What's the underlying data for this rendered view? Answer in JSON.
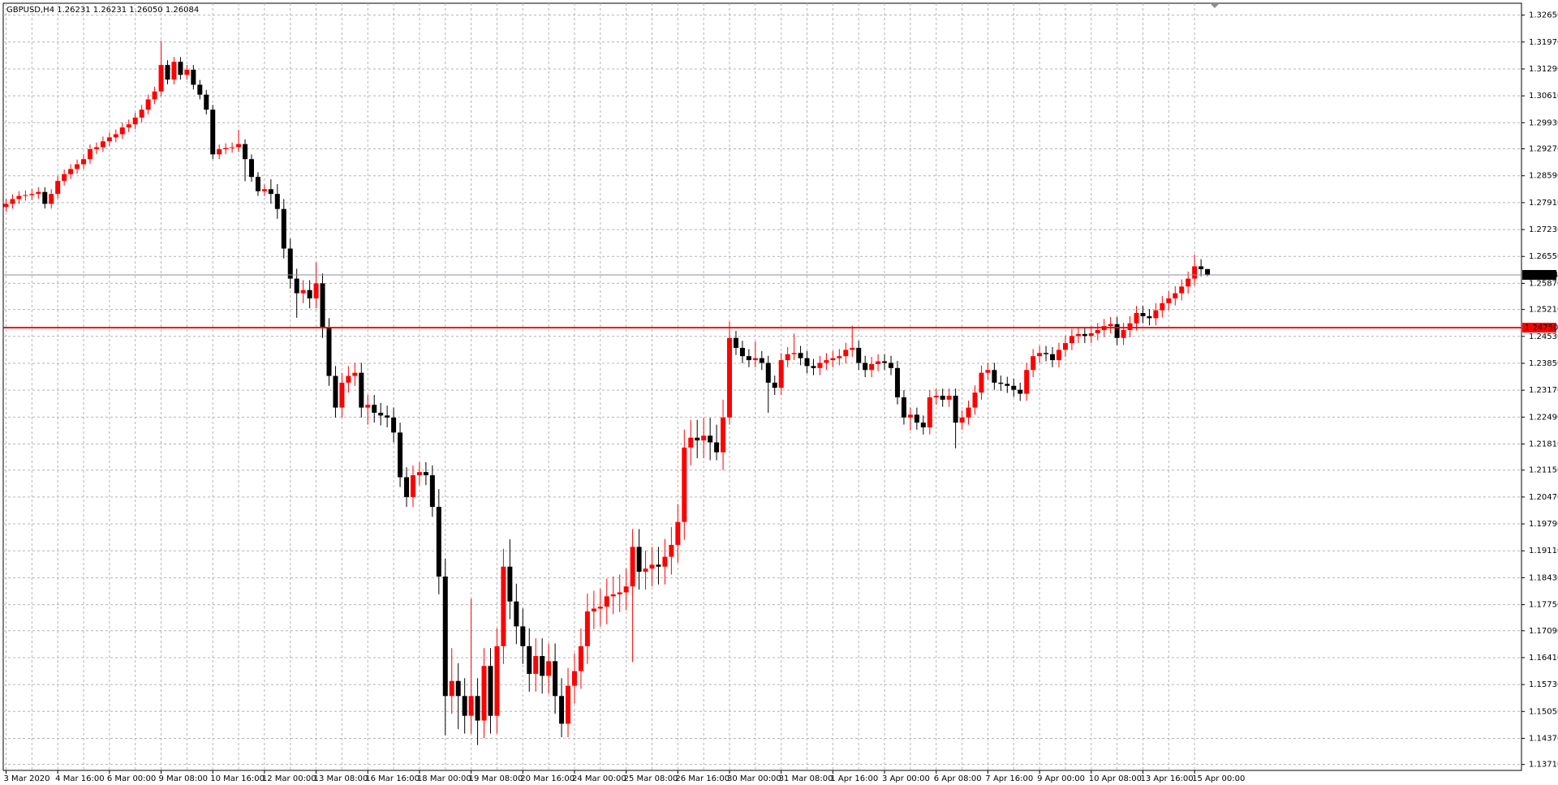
{
  "chart_data": {
    "type": "candlestick",
    "title": "GBPUSD,H4  1.26231 1.26231 1.26050 1.26084",
    "up_color": "#ff0000",
    "down_color": "#000000",
    "grid": true,
    "grid_color": "#b4b4b4",
    "ylim": [
      1.1356,
      1.3295
    ],
    "yticks": [
      {
        "value": 1.3265,
        "label": "1.32650"
      },
      {
        "value": 1.3197,
        "label": "1.31970"
      },
      {
        "value": 1.3129,
        "label": "1.31290"
      },
      {
        "value": 1.3061,
        "label": "1.30610"
      },
      {
        "value": 1.2993,
        "label": "1.29930"
      },
      {
        "value": 1.2927,
        "label": "1.29270"
      },
      {
        "value": 1.2859,
        "label": "1.28590"
      },
      {
        "value": 1.2791,
        "label": "1.27910"
      },
      {
        "value": 1.2723,
        "label": "1.27230"
      },
      {
        "value": 1.2655,
        "label": "1.26550"
      },
      {
        "value": 1.2587,
        "label": "1.25870"
      },
      {
        "value": 1.2521,
        "label": "1.25210"
      },
      {
        "value": 1.2453,
        "label": "1.24530"
      },
      {
        "value": 1.2385,
        "label": "1.23850"
      },
      {
        "value": 1.2317,
        "label": "1.23170"
      },
      {
        "value": 1.2249,
        "label": "1.22490"
      },
      {
        "value": 1.2181,
        "label": "1.21810"
      },
      {
        "value": 1.2115,
        "label": "1.21150"
      },
      {
        "value": 1.2047,
        "label": "1.20470"
      },
      {
        "value": 1.1979,
        "label": "1.19790"
      },
      {
        "value": 1.1911,
        "label": "1.19110"
      },
      {
        "value": 1.1843,
        "label": "1.18430"
      },
      {
        "value": 1.1775,
        "label": "1.17750"
      },
      {
        "value": 1.1709,
        "label": "1.17090"
      },
      {
        "value": 1.1641,
        "label": "1.16410"
      },
      {
        "value": 1.1573,
        "label": "1.15730"
      },
      {
        "value": 1.1505,
        "label": "1.15050"
      },
      {
        "value": 1.1437,
        "label": "1.14370"
      },
      {
        "value": 1.1371,
        "label": "1.13710"
      }
    ],
    "price_lines": [
      {
        "price": 1.26084,
        "color": "#8c8c9c",
        "label_color": "#000000"
      },
      {
        "price": {
          "value": 1.2475,
          "label": "1.24750"
        },
        "color": "#ff0000",
        "label_color": "#ff0000"
      }
    ],
    "categories": [
      "3 Mar 2020",
      null,
      null,
      null,
      null,
      null,
      null,
      null,
      "4 Mar 16:00",
      null,
      null,
      null,
      null,
      null,
      null,
      null,
      "6 Mar 00:00",
      null,
      null,
      null,
      null,
      null,
      null,
      null,
      "9 Mar 08:00",
      null,
      null,
      null,
      null,
      null,
      null,
      null,
      "10 Mar 16:00",
      null,
      null,
      null,
      null,
      null,
      null,
      null,
      "12 Mar 00:00",
      null,
      null,
      null,
      null,
      null,
      null,
      null,
      "13 Mar 08:00",
      null,
      null,
      null,
      null,
      null,
      null,
      null,
      "16 Mar 16:00",
      null,
      null,
      null,
      null,
      null,
      null,
      null,
      "18 Mar 00:00",
      null,
      null,
      null,
      null,
      null,
      null,
      null,
      "19 Mar 08:00",
      null,
      null,
      null,
      null,
      null,
      null,
      null,
      "20 Mar 16:00",
      null,
      null,
      null,
      null,
      null,
      null,
      null,
      "24 Mar 00:00",
      null,
      null,
      null,
      null,
      null,
      null,
      null,
      "25 Mar 08:00",
      null,
      null,
      null,
      null,
      null,
      null,
      null,
      "26 Mar 16:00",
      null,
      null,
      null,
      null,
      null,
      null,
      null,
      "30 Mar 00:00",
      null,
      null,
      null,
      null,
      null,
      null,
      null,
      "31 Mar 08:00",
      null,
      null,
      null,
      null,
      null,
      null,
      null,
      "1 Apr 16:00",
      null,
      null,
      null,
      null,
      null,
      null,
      null,
      "3 Apr 00:00",
      null,
      null,
      null,
      null,
      null,
      null,
      null,
      "6 Apr 08:00",
      null,
      null,
      null,
      null,
      null,
      null,
      null,
      "7 Apr 16:00",
      null,
      null,
      null,
      null,
      null,
      null,
      null,
      "9 Apr 00:00",
      null,
      null,
      null,
      null,
      null,
      null,
      null,
      "10 Apr 08:00",
      null,
      null,
      null,
      null,
      null,
      null,
      null,
      "13 Apr 16:00",
      null,
      null,
      null,
      null,
      null,
      null,
      null,
      "15 Apr 00:00",
      null,
      null
    ],
    "candles": [
      [
        1.278,
        1.28,
        1.2768,
        1.2788
      ],
      [
        1.2788,
        1.2812,
        1.2776,
        1.28
      ],
      [
        1.28,
        1.282,
        1.2788,
        1.2808
      ],
      [
        1.2808,
        1.2822,
        1.2796,
        1.281
      ],
      [
        1.281,
        1.2825,
        1.2798,
        1.2813
      ],
      [
        1.2813,
        1.283,
        1.2801,
        1.2818
      ],
      [
        1.2818,
        1.283,
        1.2776,
        1.2788
      ],
      [
        1.2788,
        1.2825,
        1.2776,
        1.2813
      ],
      [
        1.2813,
        1.2858,
        1.2801,
        1.2846
      ],
      [
        1.2846,
        1.2875,
        1.2834,
        1.2863
      ],
      [
        1.2863,
        1.2888,
        1.2851,
        1.2876
      ],
      [
        1.2876,
        1.29,
        1.2864,
        1.2888
      ],
      [
        1.2888,
        1.2913,
        1.2876,
        1.2901
      ],
      [
        1.2901,
        1.2938,
        1.2889,
        1.2926
      ],
      [
        1.2926,
        1.2943,
        1.2914,
        1.2931
      ],
      [
        1.2931,
        1.2958,
        1.2919,
        1.2946
      ],
      [
        1.2946,
        1.2968,
        1.2934,
        1.2956
      ],
      [
        1.2956,
        1.2976,
        1.2944,
        1.2964
      ],
      [
        1.2964,
        1.2993,
        1.2952,
        1.2981
      ],
      [
        1.2981,
        1.3001,
        1.2969,
        1.2989
      ],
      [
        1.2989,
        1.3018,
        1.2977,
        1.3006
      ],
      [
        1.3006,
        1.3038,
        1.2994,
        1.3026
      ],
      [
        1.3026,
        1.3064,
        1.3014,
        1.3052
      ],
      [
        1.3052,
        1.3084,
        1.304,
        1.3072
      ],
      [
        1.3072,
        1.32,
        1.306,
        1.3139
      ],
      [
        1.3139,
        1.3151,
        1.309,
        1.3102
      ],
      [
        1.3102,
        1.3159,
        1.309,
        1.3147
      ],
      [
        1.3147,
        1.3159,
        1.3102,
        1.3114
      ],
      [
        1.3114,
        1.3139,
        1.3102,
        1.3127
      ],
      [
        1.3127,
        1.3139,
        1.3077,
        1.3089
      ],
      [
        1.3089,
        1.3101,
        1.3052,
        1.3064
      ],
      [
        1.3064,
        1.3076,
        1.3014,
        1.3026
      ],
      [
        1.3026,
        1.3038,
        1.2901,
        1.2913
      ],
      [
        1.2913,
        1.2938,
        1.2901,
        1.2926
      ],
      [
        1.2926,
        1.2941,
        1.2914,
        1.2929
      ],
      [
        1.2929,
        1.2943,
        1.2917,
        1.2931
      ],
      [
        1.2931,
        1.2975,
        1.2919,
        1.2939
      ],
      [
        1.2939,
        1.2951,
        1.2845,
        1.2901
      ],
      [
        1.2901,
        1.2913,
        1.2844,
        1.2856
      ],
      [
        1.2856,
        1.2868,
        1.2808,
        1.282
      ],
      [
        1.282,
        1.2837,
        1.2808,
        1.2825
      ],
      [
        1.2825,
        1.285,
        1.2788,
        1.2813
      ],
      [
        1.2813,
        1.2838,
        1.275,
        1.2775
      ],
      [
        1.2775,
        1.28,
        1.265,
        1.2675
      ],
      [
        1.2675,
        1.27,
        1.2574,
        1.2599
      ],
      [
        1.2599,
        1.2624,
        1.25,
        1.2562
      ],
      [
        1.2562,
        1.2595,
        1.2537,
        1.257
      ],
      [
        1.257,
        1.2595,
        1.2524,
        1.2549
      ],
      [
        1.2549,
        1.264,
        1.2524,
        1.2587
      ],
      [
        1.2587,
        1.2612,
        1.2449,
        1.2474
      ],
      [
        1.2474,
        1.2499,
        1.2328,
        1.2353
      ],
      [
        1.2353,
        1.2378,
        1.2248,
        1.2273
      ],
      [
        1.2273,
        1.2361,
        1.2248,
        1.2336
      ],
      [
        1.2336,
        1.2378,
        1.2311,
        1.2353
      ],
      [
        1.2353,
        1.2386,
        1.2328,
        1.2361
      ],
      [
        1.2361,
        1.2386,
        1.2248,
        1.2273
      ],
      [
        1.2273,
        1.2305,
        1.223,
        1.228
      ],
      [
        1.228,
        1.2305,
        1.2235,
        1.226
      ],
      [
        1.226,
        1.2285,
        1.2228,
        1.2253
      ],
      [
        1.2253,
        1.2278,
        1.2223,
        1.2248
      ],
      [
        1.2248,
        1.2273,
        1.2185,
        1.221
      ],
      [
        1.221,
        1.2235,
        1.2072,
        1.2097
      ],
      [
        1.2097,
        1.2122,
        1.2022,
        1.2047
      ],
      [
        1.2047,
        1.2127,
        1.2022,
        1.2102
      ],
      [
        1.2102,
        1.2135,
        1.2077,
        1.211
      ],
      [
        1.211,
        1.2135,
        1.2077,
        1.2102
      ],
      [
        1.2102,
        1.2127,
        1.1997,
        1.2022
      ],
      [
        1.2022,
        1.2067,
        1.1801,
        1.1846
      ],
      [
        1.1846,
        1.1891,
        1.1445,
        1.1544
      ],
      [
        1.1544,
        1.1665,
        1.1499,
        1.1582
      ],
      [
        1.1582,
        1.1627,
        1.146,
        1.1544
      ],
      [
        1.1544,
        1.1589,
        1.1449,
        1.1494
      ],
      [
        1.1494,
        1.179,
        1.1449,
        1.1544
      ],
      [
        1.1544,
        1.1589,
        1.142,
        1.1482
      ],
      [
        1.1482,
        1.1665,
        1.1437,
        1.162
      ],
      [
        1.162,
        1.1665,
        1.1449,
        1.1494
      ],
      [
        1.1494,
        1.1715,
        1.1449,
        1.167
      ],
      [
        1.167,
        1.1916,
        1.1625,
        1.1871
      ],
      [
        1.1871,
        1.194,
        1.1738,
        1.1783
      ],
      [
        1.1783,
        1.1828,
        1.1675,
        1.172
      ],
      [
        1.172,
        1.1765,
        1.1625,
        1.167
      ],
      [
        1.167,
        1.1715,
        1.1555,
        1.16
      ],
      [
        1.16,
        1.169,
        1.1555,
        1.1645
      ],
      [
        1.1645,
        1.169,
        1.155,
        1.1595
      ],
      [
        1.1595,
        1.1677,
        1.155,
        1.1632
      ],
      [
        1.1632,
        1.1677,
        1.1499,
        1.1544
      ],
      [
        1.1544,
        1.1589,
        1.144,
        1.1474
      ],
      [
        1.1474,
        1.1615,
        1.144,
        1.157
      ],
      [
        1.157,
        1.1652,
        1.1525,
        1.1607
      ],
      [
        1.1607,
        1.1715,
        1.1562,
        1.167
      ],
      [
        1.167,
        1.1803,
        1.1625,
        1.1758
      ],
      [
        1.1758,
        1.181,
        1.1713,
        1.1765
      ],
      [
        1.1765,
        1.1815,
        1.172,
        1.177
      ],
      [
        1.177,
        1.1841,
        1.1725,
        1.1796
      ],
      [
        1.1796,
        1.1846,
        1.1751,
        1.1801
      ],
      [
        1.1801,
        1.1851,
        1.1756,
        1.1806
      ],
      [
        1.1806,
        1.1866,
        1.1761,
        1.1821
      ],
      [
        1.1821,
        1.1966,
        1.163,
        1.1921
      ],
      [
        1.1921,
        1.1966,
        1.1813,
        1.1858
      ],
      [
        1.1858,
        1.1911,
        1.1813,
        1.1866
      ],
      [
        1.1866,
        1.1921,
        1.1821,
        1.1876
      ],
      [
        1.1876,
        1.1921,
        1.1826,
        1.1871
      ],
      [
        1.1871,
        1.1941,
        1.1826,
        1.1896
      ],
      [
        1.1896,
        1.1971,
        1.1851,
        1.1926
      ],
      [
        1.1926,
        1.2029,
        1.1881,
        1.1984
      ],
      [
        1.1984,
        1.2217,
        1.1939,
        1.2172
      ],
      [
        1.2172,
        1.2242,
        1.2127,
        1.2197
      ],
      [
        1.2197,
        1.2242,
        1.2145,
        1.219
      ],
      [
        1.219,
        1.2247,
        1.2145,
        1.2202
      ],
      [
        1.2202,
        1.2247,
        1.214,
        1.2185
      ],
      [
        1.2185,
        1.223,
        1.214,
        1.216
      ],
      [
        1.216,
        1.2293,
        1.2115,
        1.2248
      ],
      [
        1.2248,
        1.249,
        1.223,
        1.2449
      ],
      [
        1.2449,
        1.2467,
        1.2406,
        1.2424
      ],
      [
        1.2424,
        1.2442,
        1.2385,
        1.2403
      ],
      [
        1.2403,
        1.2421,
        1.2375,
        1.2393
      ],
      [
        1.2393,
        1.244,
        1.2375,
        1.2398
      ],
      [
        1.2398,
        1.2416,
        1.2368,
        1.2386
      ],
      [
        1.2386,
        1.2404,
        1.226,
        1.2336
      ],
      [
        1.2336,
        1.2354,
        1.2305,
        1.2323
      ],
      [
        1.2323,
        1.2411,
        1.2305,
        1.2393
      ],
      [
        1.2393,
        1.2426,
        1.2375,
        1.2408
      ],
      [
        1.2408,
        1.246,
        1.2393,
        1.2411
      ],
      [
        1.2411,
        1.2429,
        1.238,
        1.2398
      ],
      [
        1.2398,
        1.2416,
        1.236,
        1.2378
      ],
      [
        1.2378,
        1.2396,
        1.2355,
        1.2373
      ],
      [
        1.2373,
        1.2404,
        1.2355,
        1.2386
      ],
      [
        1.2386,
        1.2411,
        1.2368,
        1.2393
      ],
      [
        1.2393,
        1.2416,
        1.2375,
        1.2398
      ],
      [
        1.2398,
        1.2421,
        1.238,
        1.2403
      ],
      [
        1.2403,
        1.2437,
        1.2385,
        1.2419
      ],
      [
        1.2419,
        1.248,
        1.2401,
        1.2424
      ],
      [
        1.2424,
        1.2442,
        1.2368,
        1.2386
      ],
      [
        1.2386,
        1.2404,
        1.235,
        1.2368
      ],
      [
        1.2368,
        1.2401,
        1.235,
        1.2383
      ],
      [
        1.2383,
        1.2408,
        1.2365,
        1.239
      ],
      [
        1.239,
        1.2408,
        1.2368,
        1.2386
      ],
      [
        1.2386,
        1.2404,
        1.2355,
        1.2373
      ],
      [
        1.2373,
        1.2391,
        1.2281,
        1.2299
      ],
      [
        1.2299,
        1.2317,
        1.223,
        1.2248
      ],
      [
        1.2248,
        1.2273,
        1.2215,
        1.2255
      ],
      [
        1.2255,
        1.2273,
        1.2217,
        1.2235
      ],
      [
        1.2235,
        1.2253,
        1.2205,
        1.2223
      ],
      [
        1.2223,
        1.2317,
        1.2205,
        1.2299
      ],
      [
        1.2299,
        1.2321,
        1.2281,
        1.2303
      ],
      [
        1.2303,
        1.2321,
        1.2275,
        1.2293
      ],
      [
        1.2293,
        1.2321,
        1.2275,
        1.2303
      ],
      [
        1.2303,
        1.2321,
        1.217,
        1.2235
      ],
      [
        1.2235,
        1.2266,
        1.2217,
        1.2248
      ],
      [
        1.2248,
        1.2291,
        1.223,
        1.2273
      ],
      [
        1.2273,
        1.2329,
        1.2255,
        1.2311
      ],
      [
        1.2311,
        1.2379,
        1.2293,
        1.2361
      ],
      [
        1.2361,
        1.2386,
        1.2343,
        1.2368
      ],
      [
        1.2368,
        1.2386,
        1.2318,
        1.2336
      ],
      [
        1.2336,
        1.2354,
        1.2315,
        1.2333
      ],
      [
        1.2333,
        1.2351,
        1.231,
        1.2328
      ],
      [
        1.2328,
        1.2346,
        1.23,
        1.2318
      ],
      [
        1.2318,
        1.2336,
        1.229,
        1.2308
      ],
      [
        1.2308,
        1.2386,
        1.229,
        1.2368
      ],
      [
        1.2368,
        1.2421,
        1.235,
        1.2403
      ],
      [
        1.2403,
        1.2429,
        1.2385,
        1.2411
      ],
      [
        1.2411,
        1.2429,
        1.239,
        1.2408
      ],
      [
        1.2408,
        1.2426,
        1.2375,
        1.2393
      ],
      [
        1.2393,
        1.2437,
        1.2375,
        1.2419
      ],
      [
        1.2419,
        1.2454,
        1.2401,
        1.2436
      ],
      [
        1.2436,
        1.2472,
        1.2418,
        1.2454
      ],
      [
        1.2454,
        1.2477,
        1.2436,
        1.2459
      ],
      [
        1.2459,
        1.2477,
        1.2436,
        1.2454
      ],
      [
        1.2454,
        1.2479,
        1.2436,
        1.2461
      ],
      [
        1.2461,
        1.2487,
        1.2443,
        1.2469
      ],
      [
        1.2469,
        1.2497,
        1.2451,
        1.2479
      ],
      [
        1.2479,
        1.2502,
        1.2461,
        1.2484
      ],
      [
        1.2484,
        1.2502,
        1.2431,
        1.2449
      ],
      [
        1.2449,
        1.2487,
        1.2431,
        1.2469
      ],
      [
        1.2469,
        1.2504,
        1.2451,
        1.2486
      ],
      [
        1.2486,
        1.253,
        1.2468,
        1.2512
      ],
      [
        1.2512,
        1.253,
        1.2486,
        1.2504
      ],
      [
        1.2504,
        1.2522,
        1.2481,
        1.2499
      ],
      [
        1.2499,
        1.2537,
        1.2481,
        1.2519
      ],
      [
        1.2519,
        1.2555,
        1.2501,
        1.2537
      ],
      [
        1.2537,
        1.2567,
        1.2519,
        1.2549
      ],
      [
        1.2549,
        1.258,
        1.2531,
        1.2562
      ],
      [
        1.2562,
        1.2597,
        1.2544,
        1.2579
      ],
      [
        1.2579,
        1.2617,
        1.2561,
        1.2599
      ],
      [
        1.2599,
        1.266,
        1.2581,
        1.263
      ],
      [
        1.263,
        1.2648,
        1.2605,
        1.2623
      ],
      [
        1.26231,
        1.26231,
        1.2605,
        1.26084
      ]
    ]
  }
}
